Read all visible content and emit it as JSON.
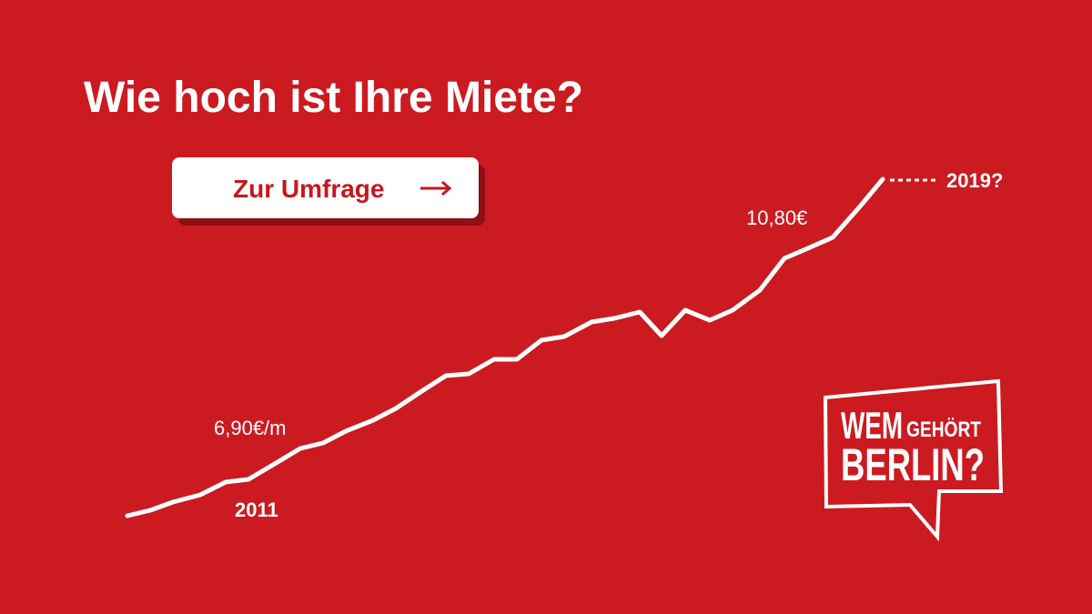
{
  "header": {
    "title": "Wie hoch ist Ihre Miete?"
  },
  "button": {
    "label": "Zur Umfrage"
  },
  "line_labels": {
    "start_value": "6,90€/m",
    "start_year": "2011",
    "end_value": "10,80€",
    "end_year": "2019?"
  },
  "logo": {
    "line1_big": "WEM",
    "line1_small": "GEHÖRT",
    "line2": "BERLIN?"
  }
}
